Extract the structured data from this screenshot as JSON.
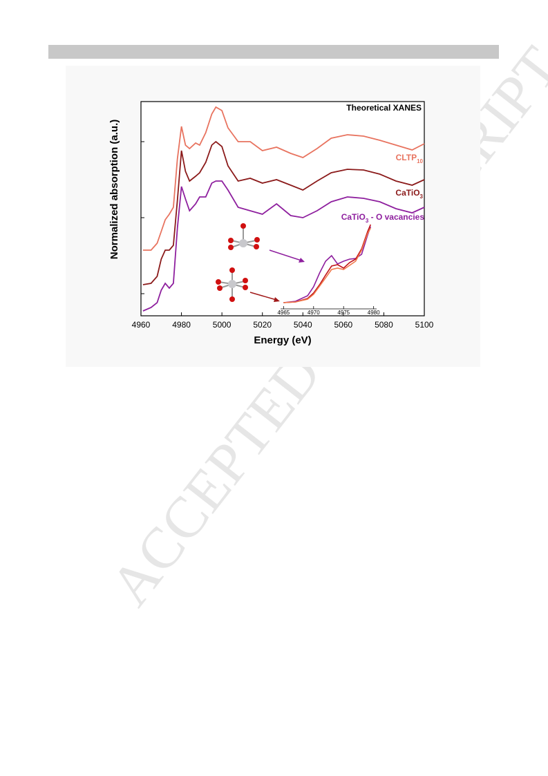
{
  "watermark": "ACCEPTED MANUSCRIPT",
  "chart_data": [
    {
      "type": "line",
      "title": "Theoretical XANES",
      "xlabel": "Energy (eV)",
      "ylabel": "Normalized absorption (a.u.)",
      "xlim": [
        4960,
        5100
      ],
      "xticks": [
        4960,
        4980,
        5000,
        5020,
        5040,
        5060,
        5080,
        5100
      ],
      "ylim": [
        0,
        3.1
      ],
      "x": [
        4961,
        4965,
        4968,
        4970,
        4972,
        4974,
        4976,
        4978,
        4980,
        4982,
        4984,
        4987,
        4989,
        4992,
        4995,
        4997,
        5000,
        5003,
        5008,
        5014,
        5020,
        5027,
        5034,
        5040,
        5047,
        5054,
        5062,
        5070,
        5078,
        5086,
        5094,
        5100
      ],
      "series": [
        {
          "name": "CLTP10",
          "color": "#e8735f",
          "values": [
            0.95,
            0.95,
            1.05,
            1.22,
            1.39,
            1.47,
            1.57,
            2.27,
            2.74,
            2.47,
            2.42,
            2.5,
            2.47,
            2.65,
            2.92,
            3.02,
            2.97,
            2.72,
            2.52,
            2.52,
            2.39,
            2.44,
            2.35,
            2.29,
            2.42,
            2.57,
            2.62,
            2.6,
            2.54,
            2.47,
            2.4,
            2.49
          ]
        },
        {
          "name": "CaTiO3",
          "color": "#8b1a1a",
          "values": [
            0.45,
            0.47,
            0.57,
            0.82,
            0.95,
            0.95,
            1.02,
            1.67,
            2.39,
            2.09,
            1.95,
            2.02,
            2.07,
            2.22,
            2.47,
            2.52,
            2.45,
            2.17,
            1.95,
            1.99,
            1.92,
            1.97,
            1.89,
            1.82,
            1.95,
            2.07,
            2.12,
            2.11,
            2.05,
            1.95,
            1.89,
            1.97
          ]
        },
        {
          "name": "CaTiO3 - O vacancies",
          "color": "#8e1f9e",
          "values": [
            0.07,
            0.12,
            0.19,
            0.37,
            0.47,
            0.4,
            0.47,
            1.27,
            1.87,
            1.69,
            1.52,
            1.62,
            1.72,
            1.72,
            1.92,
            1.95,
            1.95,
            1.82,
            1.57,
            1.52,
            1.47,
            1.62,
            1.45,
            1.42,
            1.52,
            1.65,
            1.72,
            1.7,
            1.65,
            1.55,
            1.49,
            1.57
          ]
        }
      ]
    },
    {
      "type": "line",
      "xlim": [
        4964.5,
        4980.5
      ],
      "xticks": [
        4965,
        4970,
        4975,
        4980
      ],
      "ylim": [
        0,
        1.1
      ],
      "x": [
        4965,
        4967,
        4969,
        4970,
        4971,
        4972,
        4973,
        4974,
        4975,
        4976,
        4977,
        4978,
        4979,
        4979.5
      ],
      "series": [
        {
          "color": "#8e1f9e",
          "values": [
            0.02,
            0.04,
            0.12,
            0.25,
            0.45,
            0.62,
            0.7,
            0.58,
            0.62,
            0.65,
            0.66,
            0.72,
            1.0,
            1.12
          ]
        },
        {
          "color": "#c0141a",
          "values": [
            0.02,
            0.03,
            0.08,
            0.16,
            0.28,
            0.42,
            0.55,
            0.57,
            0.52,
            0.6,
            0.65,
            0.8,
            1.05,
            1.15
          ]
        },
        {
          "color": "#f0784a",
          "values": [
            0.02,
            0.03,
            0.07,
            0.14,
            0.26,
            0.38,
            0.5,
            0.52,
            0.5,
            0.56,
            0.62,
            0.78,
            1.02,
            1.1
          ]
        }
      ]
    }
  ]
}
